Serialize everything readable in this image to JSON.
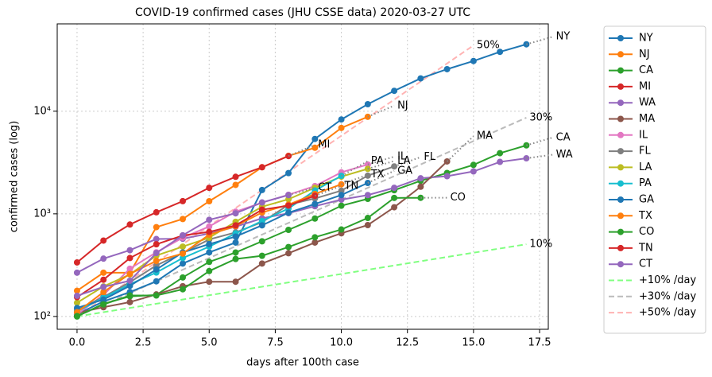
{
  "chart_data": {
    "type": "line",
    "title": "COVID-19 confirmed cases (JHU CSSE data) 2020-03-27 UTC",
    "x_label": "days after 100th case",
    "y_label": "confirmed cases (log)",
    "log_y": true,
    "grid": true,
    "legend": "outside right",
    "xlim": [
      -0.75,
      17.83
    ],
    "ylim": [
      75,
      71000
    ],
    "xticks": [
      {
        "value": 0,
        "label": "0.0"
      },
      {
        "value": 2.5,
        "label": "2.5"
      },
      {
        "value": 5,
        "label": "5.0"
      },
      {
        "value": 7.5,
        "label": "7.5"
      },
      {
        "value": 10,
        "label": "10.0"
      },
      {
        "value": 12.5,
        "label": "12.5"
      },
      {
        "value": 15,
        "label": "15.0"
      },
      {
        "value": 17.5,
        "label": "17.5"
      }
    ],
    "yticks": [
      {
        "value": 100,
        "label": "10²"
      },
      {
        "value": 1000,
        "label": "10³"
      },
      {
        "value": 10000,
        "label": "10⁴"
      }
    ],
    "series": [
      {
        "name": "NY",
        "color": "#1f77b4",
        "values": [
          105,
          140,
          173,
          220,
          328,
          421,
          525,
          1706,
          2495,
          5365,
          8310,
          11710,
          15793,
          20884,
          25681,
          30841,
          37877,
          44876
        ]
      },
      {
        "name": "NJ",
        "color": "#ff7f0e",
        "values": [
          178,
          267,
          267,
          742,
          890,
          1327,
          1914,
          2844,
          3675,
          4402,
          6876,
          8825
        ]
      },
      {
        "name": "CA",
        "color": "#2ca02c",
        "values": [
          100,
          133,
          157,
          162,
          240,
          340,
          420,
          540,
          698,
          900,
          1200,
          1400,
          1700,
          2100,
          2500,
          3000,
          3900,
          4650
        ]
      },
      {
        "name": "MI",
        "color": "#d62728",
        "values": [
          336,
          549,
          787,
          1035,
          1329,
          1793,
          2296,
          2845,
          3657
        ]
      },
      {
        "name": "WA",
        "color": "#9467bd",
        "values": [
          267,
          366,
          442,
          568,
          572,
          643,
          750,
          904,
          1014,
          1187,
          1376,
          1524,
          1793,
          2221,
          2328,
          2591,
          3207,
          3477
        ]
      },
      {
        "name": "MA",
        "color": "#8c564b",
        "values": [
          108,
          123,
          138,
          164,
          197,
          218,
          218,
          328,
          413,
          525,
          646,
          777,
          1159,
          1838,
          3240
        ]
      },
      {
        "name": "IL",
        "color": "#e377c2",
        "values": [
          105,
          162,
          292,
          422,
          585,
          753,
          1049,
          1285,
          1535,
          1865,
          2538,
          3026
        ]
      },
      {
        "name": "FL",
        "color": "#7f7f7f",
        "values": [
          115,
          155,
          216,
          314,
          417,
          563,
          659,
          830,
          1227,
          1412,
          1682,
          2357,
          2900
        ]
      },
      {
        "name": "LA",
        "color": "#bcbd22",
        "values": [
          136,
          196,
          257,
          392,
          479,
          585,
          837,
          1172,
          1388,
          1795,
          2305,
          2746
        ]
      },
      {
        "name": "PA",
        "color": "#17becf",
        "values": [
          112,
          152,
          206,
          268,
          371,
          479,
          644,
          851,
          1127,
          1687,
          2345
        ]
      },
      {
        "name": "GA",
        "color": "#1f77b4",
        "values": [
          121,
          146,
          199,
          287,
          420,
          507,
          600,
          772,
          1026,
          1247,
          1525,
          2000
        ]
      },
      {
        "name": "TX",
        "color": "#ff7f0e",
        "values": [
          110,
          173,
          260,
          348,
          410,
          627,
          758,
          1031,
          1229,
          1563,
          1940
        ]
      },
      {
        "name": "CO",
        "color": "#2ca02c",
        "values": [
          101,
          131,
          160,
          160,
          184,
          277,
          363,
          390,
          475,
          591,
          704,
          912,
          1430,
          1433
        ]
      },
      {
        "name": "TN",
        "color": "#d62728",
        "values": [
          154,
          228,
          371,
          505,
          615,
          667,
          772,
          1097,
          1203,
          1500
        ]
      },
      {
        "name": "CT",
        "color": "#9467bd",
        "values": [
          159,
          194,
          223,
          415,
          618,
          875,
          1012,
          1291,
          1524
        ]
      }
    ],
    "references": [
      {
        "name": "+10% /day",
        "label": "10%",
        "color": "#80ff80",
        "start": 100,
        "rate": 10,
        "days": 17
      },
      {
        "name": "+30% /day",
        "label": "30%",
        "color": "#bbbbbb",
        "start": 100,
        "rate": 30,
        "days": 17
      },
      {
        "name": "+50% /day",
        "label": "50%",
        "color": "#ffb3b3",
        "start": 100,
        "rate": 50,
        "days": 15
      }
    ]
  }
}
